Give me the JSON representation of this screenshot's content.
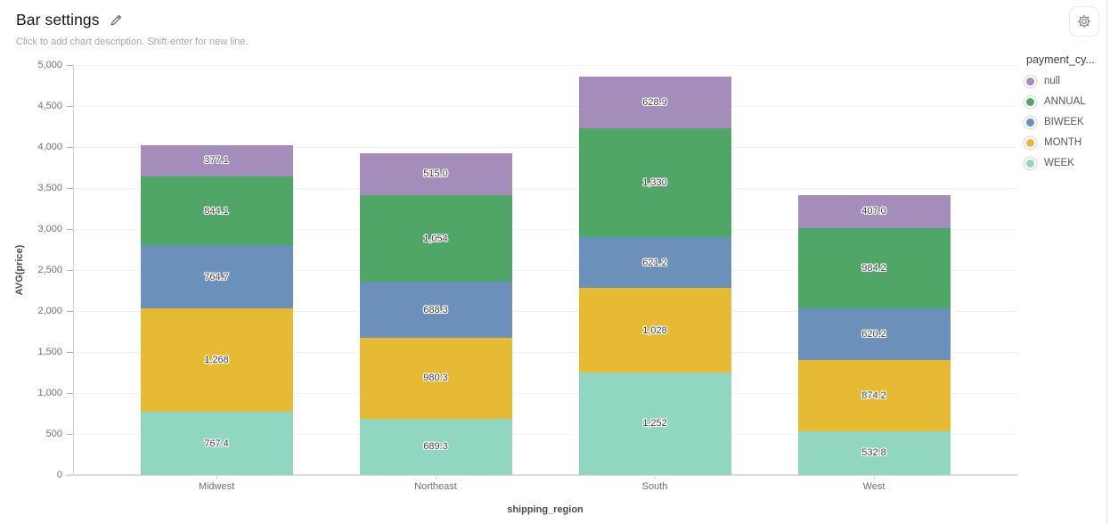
{
  "header": {
    "title": "Bar settings",
    "subtitle": "Click to add chart description. Shift-enter for new line.",
    "edit_icon": "pencil-icon",
    "settings_icon": "gear-icon"
  },
  "legend": {
    "title": "payment_cy...",
    "items": [
      {
        "label": "null",
        "color": "#a58dbb"
      },
      {
        "label": "ANNUAL",
        "color": "#50a666"
      },
      {
        "label": "BIWEEK",
        "color": "#6b90ba"
      },
      {
        "label": "MONTH",
        "color": "#e6bb33"
      },
      {
        "label": "WEEK",
        "color": "#90d6c0"
      }
    ]
  },
  "chart_data": {
    "type": "bar",
    "stacked": true,
    "title": "Bar settings",
    "categories": [
      "Midwest",
      "Northeast",
      "South",
      "West"
    ],
    "series": [
      {
        "name": "WEEK",
        "color": "#90d6c0",
        "values": [
          767.4,
          689.3,
          1252,
          532.8
        ],
        "labels": [
          "767.4",
          "689.3",
          "1,252",
          "532.8"
        ]
      },
      {
        "name": "MONTH",
        "color": "#e6bb33",
        "values": [
          1268,
          980.3,
          1028,
          874.2
        ],
        "labels": [
          "1,268",
          "980.3",
          "1,028",
          "874.2"
        ]
      },
      {
        "name": "BIWEEK",
        "color": "#6b90ba",
        "values": [
          764.7,
          688.3,
          621.2,
          620.2
        ],
        "labels": [
          "764.7",
          "688.3",
          "621.2",
          "620.2"
        ]
      },
      {
        "name": "ANNUAL",
        "color": "#50a666",
        "values": [
          844.1,
          1054,
          1330,
          984.2
        ],
        "labels": [
          "844.1",
          "1,054",
          "1,330",
          "984.2"
        ]
      },
      {
        "name": "null",
        "color": "#a58dbb",
        "values": [
          377.1,
          515,
          628.9,
          407
        ],
        "labels": [
          "377.1",
          "515.0",
          "628.9",
          "407.0"
        ]
      }
    ],
    "stack_order": "bottom-to-top",
    "xlabel": "shipping_region",
    "ylabel": "AVG(price)",
    "ylim": [
      0,
      5000
    ],
    "ytick_step": 500,
    "yticks": [
      "0",
      "500",
      "1,000",
      "1,500",
      "2,000",
      "2,500",
      "3,000",
      "3,500",
      "4,000",
      "4,500",
      "5,000"
    ],
    "grid": "horizontal",
    "legend_position": "right",
    "legend_title": "payment_cy..."
  }
}
